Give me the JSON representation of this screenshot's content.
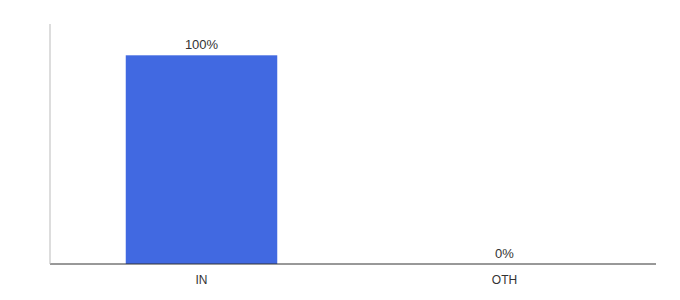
{
  "chart_data": {
    "type": "bar",
    "categories": [
      "IN",
      "OTH"
    ],
    "values": [
      100,
      0
    ],
    "value_labels": [
      "100%",
      "0%"
    ],
    "color": "#4169E1",
    "ylim": [
      0,
      115
    ],
    "grid": false,
    "data_labels": true,
    "tick_labels": "x"
  }
}
